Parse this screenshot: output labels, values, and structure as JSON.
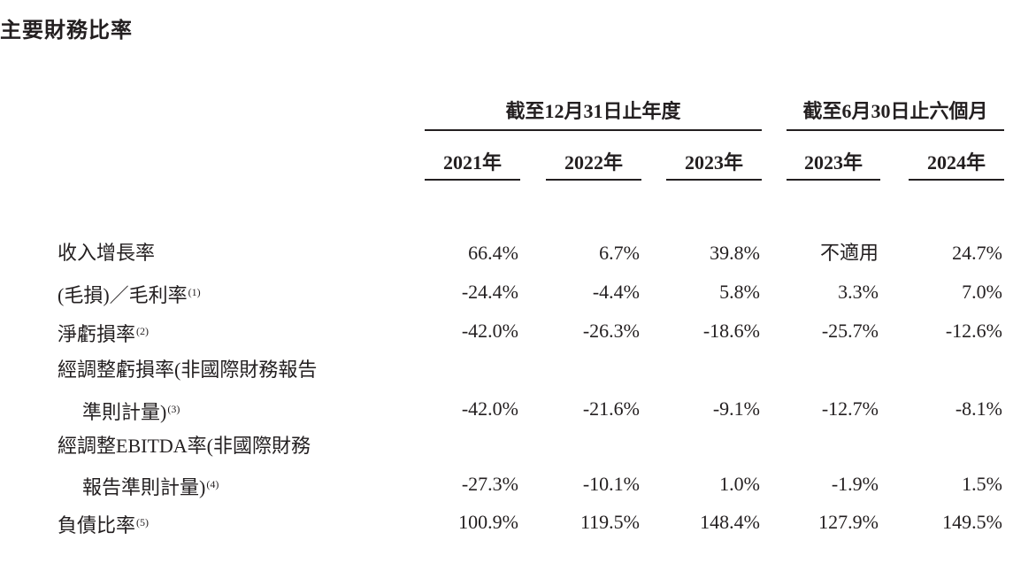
{
  "title": "主要財務比率",
  "groups": [
    {
      "label": "截至12月31日止年度"
    },
    {
      "label": "截至6月30日止六個月"
    }
  ],
  "columns": [
    "2021年",
    "2022年",
    "2023年",
    "2023年",
    "2024年"
  ],
  "rows": [
    {
      "label": "收入增長率",
      "note": "",
      "values": [
        "66.4%",
        "6.7%",
        "39.8%",
        "不適用",
        "24.7%"
      ]
    },
    {
      "label": "(毛損)／毛利率",
      "note": "(1)",
      "values": [
        "-24.4%",
        "-4.4%",
        "5.8%",
        "3.3%",
        "7.0%"
      ]
    },
    {
      "label": "淨虧損率",
      "note": "(2)",
      "values": [
        "-42.0%",
        "-26.3%",
        "-18.6%",
        "-25.7%",
        "-12.6%"
      ]
    },
    {
      "label": "經調整虧損率(非國際財務報告",
      "label2": "準則計量)",
      "note": "(3)",
      "values": [
        "-42.0%",
        "-21.6%",
        "-9.1%",
        "-12.7%",
        "-8.1%"
      ]
    },
    {
      "label": "經調整EBITDA率(非國際財務",
      "label2": "報告準則計量)",
      "note": "(4)",
      "values": [
        "-27.3%",
        "-10.1%",
        "1.0%",
        "-1.9%",
        "1.5%"
      ]
    },
    {
      "label": "負債比率",
      "note": "(5)",
      "values": [
        "100.9%",
        "119.5%",
        "148.4%",
        "127.9%",
        "149.5%"
      ]
    }
  ]
}
